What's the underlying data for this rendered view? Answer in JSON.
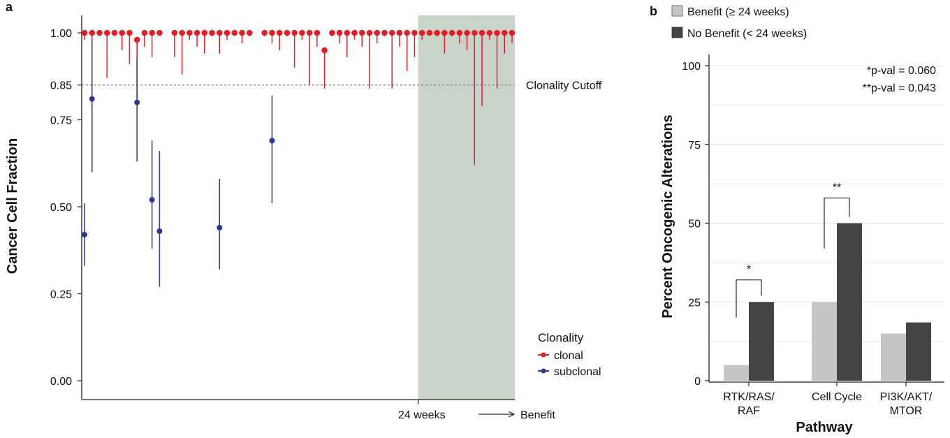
{
  "chart_data": [
    {
      "panel": "a",
      "type": "scatter",
      "ylabel": "Cancer Cell Fraction",
      "ylim": [
        0,
        1
      ],
      "yticks": [
        "0.00",
        "0.25",
        "0.50",
        "0.75",
        "0.85",
        "1.00"
      ],
      "ytick_values": [
        0,
        0.25,
        0.5,
        0.75,
        0.85,
        1.0
      ],
      "x_annotation": "24 weeks",
      "x_arrow_label": "Benefit",
      "cutoff": {
        "value": 0.85,
        "label": "Clonality Cutoff"
      },
      "shaded_region": {
        "from_sample": 46,
        "to_sample": 58
      },
      "n_samples": 58,
      "legend": {
        "title": "Clonality",
        "position": "right",
        "items": [
          {
            "label": "clonal",
            "color": "#e41e26"
          },
          {
            "label": "subclonal",
            "color": "#2b3990"
          }
        ]
      },
      "series": [
        {
          "name": "clonal",
          "color": "#e41e26",
          "points": [
            {
              "x": 1,
              "y": 1.0,
              "lo": 0.98
            },
            {
              "x": 2,
              "y": 1.0,
              "lo": 0.89
            },
            {
              "x": 3,
              "y": 1.0,
              "lo": 1.0
            },
            {
              "x": 4,
              "y": 1.0,
              "lo": 0.87
            },
            {
              "x": 5,
              "y": 1.0,
              "lo": 1.0
            },
            {
              "x": 6,
              "y": 1.0,
              "lo": 0.95
            },
            {
              "x": 7,
              "y": 1.0,
              "lo": 0.91
            },
            {
              "x": 8,
              "y": 0.98,
              "lo": 0.79
            },
            {
              "x": 9,
              "y": 1.0,
              "lo": 0.96
            },
            {
              "x": 10,
              "y": 1.0,
              "lo": 0.93
            },
            {
              "x": 11,
              "y": 1.0,
              "lo": 1.0
            },
            {
              "x": 13,
              "y": 1.0,
              "lo": 0.93
            },
            {
              "x": 14,
              "y": 1.0,
              "lo": 0.88
            },
            {
              "x": 15,
              "y": 1.0,
              "lo": 0.98
            },
            {
              "x": 16,
              "y": 1.0,
              "lo": 0.96
            },
            {
              "x": 17,
              "y": 1.0,
              "lo": 0.94
            },
            {
              "x": 18,
              "y": 1.0,
              "lo": 0.99
            },
            {
              "x": 19,
              "y": 1.0,
              "lo": 0.94
            },
            {
              "x": 20,
              "y": 1.0,
              "lo": 0.98
            },
            {
              "x": 21,
              "y": 1.0,
              "lo": 1.0
            },
            {
              "x": 22,
              "y": 1.0,
              "lo": 0.97
            },
            {
              "x": 23,
              "y": 1.0,
              "lo": 0.99
            },
            {
              "x": 25,
              "y": 1.0,
              "lo": 0.99
            },
            {
              "x": 26,
              "y": 1.0,
              "lo": 0.97
            },
            {
              "x": 27,
              "y": 1.0,
              "lo": 0.95
            },
            {
              "x": 28,
              "y": 1.0,
              "lo": 0.99
            },
            {
              "x": 29,
              "y": 1.0,
              "lo": 0.9
            },
            {
              "x": 30,
              "y": 1.0,
              "lo": 0.98
            },
            {
              "x": 31,
              "y": 1.0,
              "lo": 0.85
            },
            {
              "x": 32,
              "y": 1.0,
              "lo": 0.96
            },
            {
              "x": 33,
              "y": 0.95,
              "lo": 0.84
            },
            {
              "x": 34,
              "y": 1.0,
              "lo": 0.99
            },
            {
              "x": 35,
              "y": 1.0,
              "lo": 0.97
            },
            {
              "x": 36,
              "y": 1.0,
              "lo": 0.93
            },
            {
              "x": 37,
              "y": 1.0,
              "lo": 0.98
            },
            {
              "x": 38,
              "y": 1.0,
              "lo": 0.96
            },
            {
              "x": 39,
              "y": 1.0,
              "lo": 0.84
            },
            {
              "x": 40,
              "y": 1.0,
              "lo": 0.97
            },
            {
              "x": 41,
              "y": 1.0,
              "lo": 0.99
            },
            {
              "x": 42,
              "y": 1.0,
              "lo": 0.84
            },
            {
              "x": 43,
              "y": 1.0,
              "lo": 0.96
            },
            {
              "x": 44,
              "y": 1.0,
              "lo": 0.89
            },
            {
              "x": 45,
              "y": 1.0,
              "lo": 0.93
            },
            {
              "x": 46,
              "y": 1.0,
              "lo": 0.98
            },
            {
              "x": 47,
              "y": 1.0,
              "lo": 1.0
            },
            {
              "x": 48,
              "y": 1.0,
              "lo": 0.99
            },
            {
              "x": 49,
              "y": 1.0,
              "lo": 0.94
            },
            {
              "x": 50,
              "y": 1.0,
              "lo": 0.99
            },
            {
              "x": 51,
              "y": 1.0,
              "lo": 0.97
            },
            {
              "x": 52,
              "y": 1.0,
              "lo": 0.95
            },
            {
              "x": 53,
              "y": 1.0,
              "lo": 0.62
            },
            {
              "x": 54,
              "y": 1.0,
              "lo": 0.79
            },
            {
              "x": 55,
              "y": 1.0,
              "lo": 0.98
            },
            {
              "x": 56,
              "y": 1.0,
              "lo": 0.84
            },
            {
              "x": 57,
              "y": 1.0,
              "lo": 0.94
            },
            {
              "x": 58,
              "y": 1.0,
              "lo": 0.97
            }
          ]
        },
        {
          "name": "subclonal",
          "color": "#2b3990",
          "points": [
            {
              "x": 1,
              "y": 0.42,
              "lo": 0.33,
              "hi": 0.51
            },
            {
              "x": 2,
              "y": 0.81,
              "lo": 0.6,
              "hi": 0.98
            },
            {
              "x": 8,
              "y": 0.8,
              "lo": 0.63,
              "hi": 0.93
            },
            {
              "x": 10,
              "y": 0.52,
              "lo": 0.38,
              "hi": 0.69
            },
            {
              "x": 11,
              "y": 0.43,
              "lo": 0.27,
              "hi": 0.66
            },
            {
              "x": 19,
              "y": 0.44,
              "lo": 0.32,
              "hi": 0.58
            },
            {
              "x": 26,
              "y": 0.69,
              "lo": 0.51,
              "hi": 0.82
            }
          ]
        }
      ]
    },
    {
      "panel": "b",
      "type": "bar",
      "xlabel": "Pathway",
      "ylabel": "Percent Oncogenic Alterations",
      "ylim": [
        0,
        100
      ],
      "yticks": [
        "0",
        "25",
        "50",
        "75",
        "100"
      ],
      "ytick_values": [
        0,
        25,
        50,
        75,
        100
      ],
      "categories": [
        [
          "RTK/RAS/",
          "RAF"
        ],
        [
          "Cell Cycle"
        ],
        [
          "PI3K/AKT/",
          "MTOR"
        ]
      ],
      "series": [
        {
          "name": "Benefit (≥ 24 weeks)",
          "color": "#c6c6c6",
          "values": [
            5,
            25,
            15
          ]
        },
        {
          "name": "No Benefit (< 24 weeks)",
          "color": "#444444",
          "values": [
            25,
            50,
            18.5
          ]
        }
      ],
      "legend_position": "top",
      "significance": [
        {
          "category_index": 0,
          "label": "*",
          "bracket_low": 20,
          "bracket_high": 32
        },
        {
          "category_index": 1,
          "label": "**",
          "bracket_low": 42,
          "bracket_high": 58
        }
      ],
      "pvalues": [
        "*p-val = 0.060",
        "**p-val = 0.043"
      ]
    }
  ]
}
